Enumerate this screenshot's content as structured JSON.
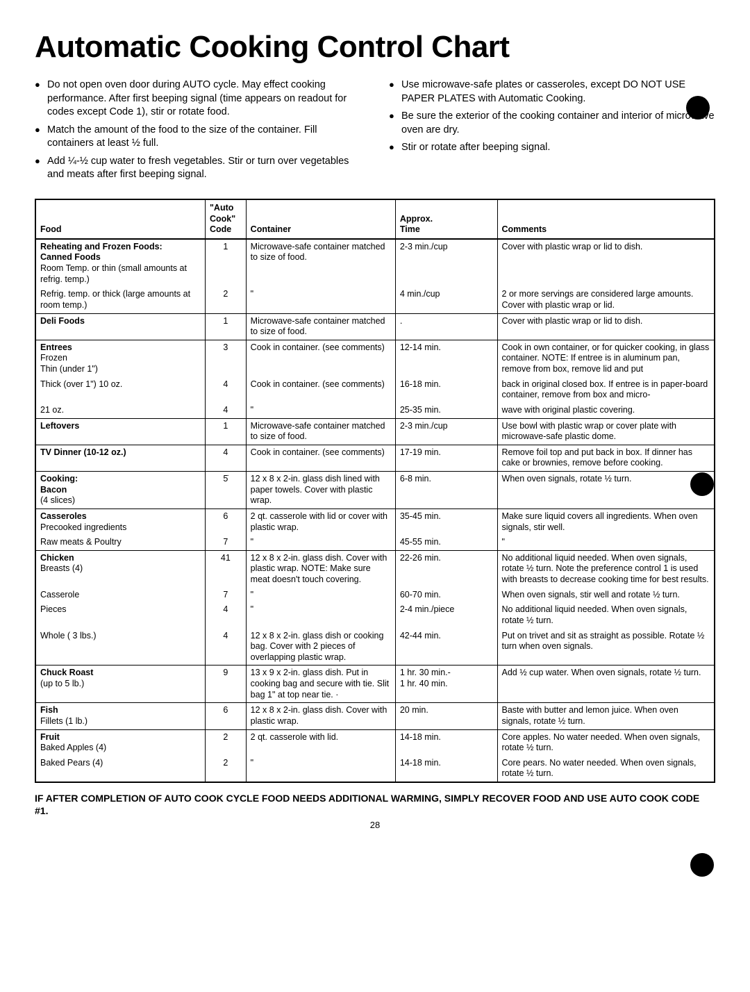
{
  "title": "Automatic Cooking Control Chart",
  "bullets_left": [
    "Do not open oven door during AUTO cycle. May effect cooking performance. After first beeping signal (time appears on readout for codes except Code 1), stir or rotate food.",
    "Match the amount of the food to the size of the container. Fill containers at least ½ full.",
    "Add ¼-½ cup water to fresh vegetables. Stir or turn over vegetables and meats after first beeping signal."
  ],
  "bullets_right": [
    "Use microwave-safe plates or casseroles, except DO NOT USE PAPER PLATES with Automatic Cooking.",
    "Be sure the exterior of the cooking container and interior of microwave oven are dry.",
    "Stir or rotate after beeping signal."
  ],
  "headers": {
    "food": "Food",
    "code_top": "\"Auto",
    "code_mid": "Cook\"",
    "code": "Code",
    "container": "Container",
    "time_top": "Approx.",
    "time": "Time",
    "comments": "Comments"
  },
  "rows": [
    {
      "sep": true,
      "foodBold": "Reheating and Frozen Foods:",
      "food2Bold": "Canned Foods",
      "food3": "Room Temp. or thin (small amounts at refrig. temp.)",
      "code": "1",
      "container": "Microwave-safe container matched to size of food.",
      "time": "2-3 min./cup",
      "comments": "Cover with plastic wrap or lid to dish."
    },
    {
      "food3": "Refrig. temp. or thick (large amounts at room temp.)",
      "code": "2",
      "container": "\"",
      "time": "4 min./cup",
      "comments": "2 or more servings are considered large amounts. Cover with plastic wrap or lid."
    },
    {
      "sep": true,
      "foodBold": "Deli Foods",
      "code": "1",
      "container": "Microwave-safe container matched to size of food.",
      "time": ".",
      "comments": "Cover with plastic wrap or lid to dish."
    },
    {
      "sep": true,
      "foodBold": "Entrees",
      "food3": "Frozen\nThin (under 1\")",
      "code": "3",
      "container": "Cook in container. (see comments)",
      "time": "12-14 min.",
      "comments": "Cook in own container, or for quicker cooking, in glass container. NOTE: If entree is in aluminum pan, remove from box, remove lid and put"
    },
    {
      "food3": "Thick (over 1\") 10 oz.",
      "code": "4",
      "container": "Cook in container. (see comments)",
      "time": "16-18 min.",
      "comments": "back in original closed box. If entree is in paper-board container, remove from box and micro-"
    },
    {
      "food3": "21 oz.",
      "code": "4",
      "container": "\"",
      "time": "25-35 min.",
      "comments": "wave with original plastic covering."
    },
    {
      "sep": true,
      "foodBold": "Leftovers",
      "code": "1",
      "container": "Microwave-safe container matched to size of food.",
      "time": "2-3 min./cup",
      "comments": "Use bowl with plastic wrap or cover plate with microwave-safe plastic dome."
    },
    {
      "sep": true,
      "foodBold": "TV Dinner (10-12 oz.)",
      "code": "4",
      "container": "Cook in container. (see comments)",
      "time": "17-19 min.",
      "comments": "Remove foil top and put back in box. If dinner has cake or brownies, remove before cooking."
    },
    {
      "sep": true,
      "foodBold": "Cooking:",
      "food2Bold": "Bacon",
      "food3": "(4 slices)",
      "code": "5̇",
      "container": "12 x 8 x 2-in. glass dish lined with paper towels. Cover with plastic wrap.",
      "time": "6-8 min.",
      "comments": "When oven signals, rotate ½ turn."
    },
    {
      "sep": true,
      "foodBold": "Casseroles",
      "food3": "Precooked ingredients",
      "code": "6",
      "container": "2 qt. casserole with lid or cover with plastic wrap.",
      "time": "35-45 min.",
      "comments": "Make sure liquid covers all ingredients. When oven signals, stir well."
    },
    {
      "food3": "Raw meats & Poultry",
      "code": "7",
      "container": "\"",
      "time": "45-55 min.",
      "comments": "\""
    },
    {
      "sep": true,
      "foodBold": "Chicken",
      "food3": "Breasts (4)",
      "code": "41",
      "container": "12 x 8 x 2-in. glass dish. Cover with plastic wrap. NOTE: Make sure meat doesn't touch covering.",
      "time": "22-26 min.",
      "comments": "No additional liquid needed. When oven signals, rotate ½ turn. Note the preference control 1 is used with breasts to decrease cooking time for best results."
    },
    {
      "food3": "Casserole",
      "code": "7",
      "container": "\"",
      "time": "60-70 min.",
      "comments": "When oven signals, stir well and rotate ½ turn."
    },
    {
      "food3": "Pieces",
      "code": "4",
      "container": "\"",
      "time": "2-4 min./piece",
      "comments": "No additional liquid needed. When oven signals, rotate ½ turn."
    },
    {
      "food3": "Whole ( 3 lbs.)",
      "code": "4",
      "container": "12 x 8 x 2-in. glass dish or cooking bag. Cover with 2 pieces of overlapping plastic wrap.",
      "time": "42-44 min.",
      "comments": "Put on trivet and sit as straight as possible. Rotate ½ turn when oven signals."
    },
    {
      "sep": true,
      "foodBold": "Chuck Roast",
      "food3": "(up to 5 lb.)",
      "code": "9",
      "container": "13 x 9 x 2-in. glass dish. Put in cooking bag and secure with tie. Slit bag 1\" at top near tie. ·",
      "time": "1 hr. 30 min.-\n1 hr. 40 min.",
      "comments": "Add ½ cup water. When oven signals, rotate ½ turn."
    },
    {
      "sep": true,
      "foodBold": "Fish",
      "food3": "Fillets (1 lb.)",
      "code": "6",
      "container": "12 x 8 x 2-in. glass dish. Cover with plastic wrap.",
      "time": "20 min.",
      "comments": "Baste with butter and lemon juice. When oven signals, rotate ½ turn."
    },
    {
      "sep": true,
      "foodBold": "Fruit",
      "food3": "Baked Apples (4)",
      "code": "2",
      "container": "2 qt. casserole with lid.",
      "time": "14-18 min.",
      "comments": "Core apples. No water needed. When oven signals, rotate ½ turn."
    },
    {
      "food3": "Baked Pears (4)",
      "code": "2",
      "container": "\"",
      "time": "14-18 min.",
      "comments": "Core pears. No water needed. When oven signals, rotate ½ turn."
    }
  ],
  "footer": "IF AFTER COMPLETION OF AUTO COOK CYCLE FOOD NEEDS ADDITIONAL WARMING, SIMPLY RECOVER FOOD AND USE AUTO COOK CODE #1.",
  "page": "28"
}
